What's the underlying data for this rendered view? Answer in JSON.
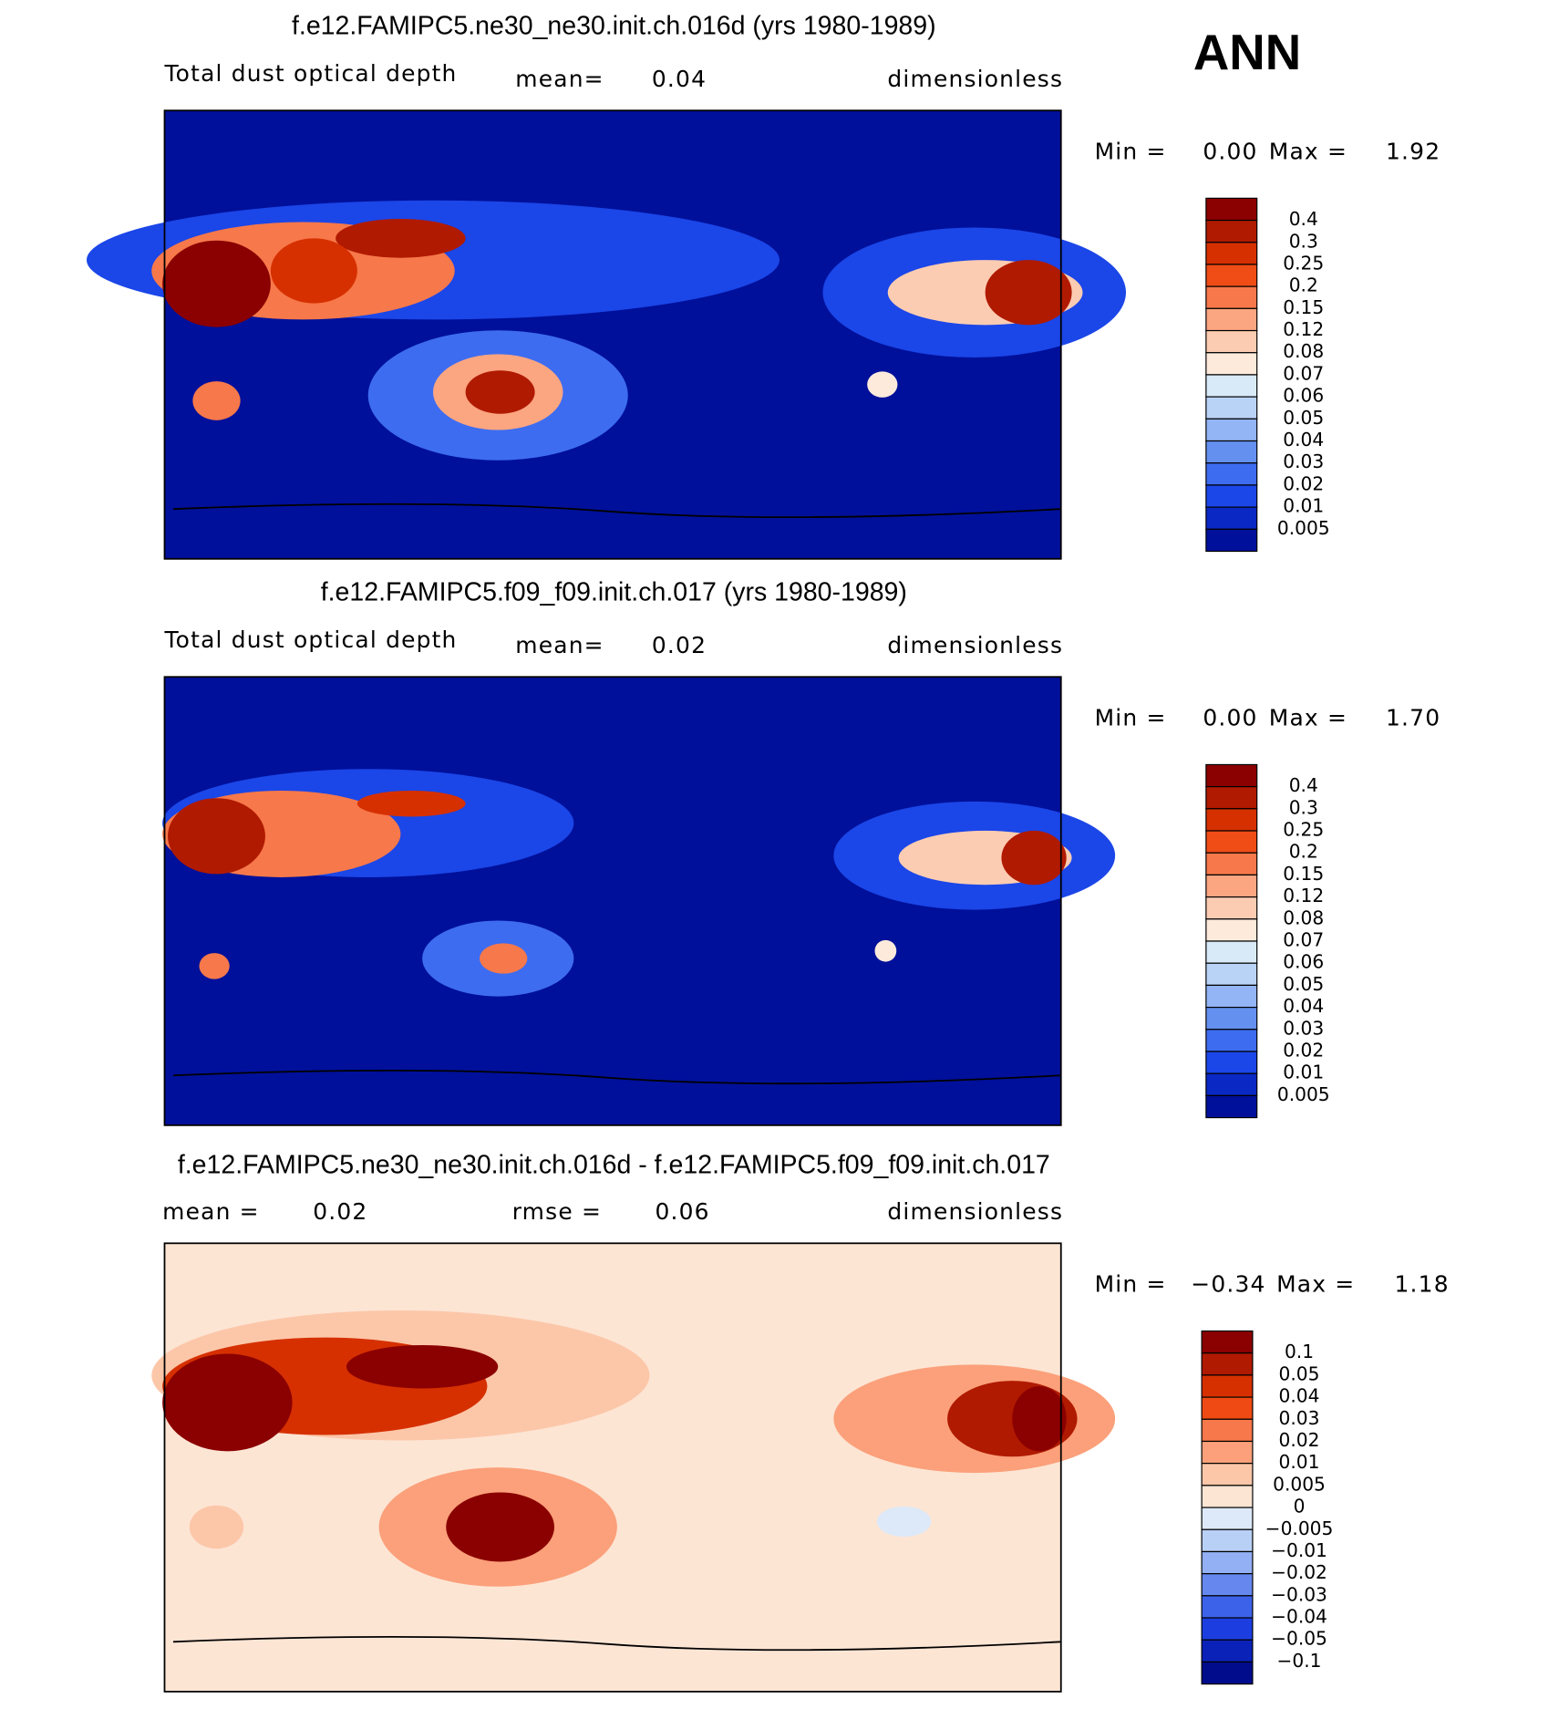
{
  "label": "ANN",
  "panels": [
    {
      "title": "f.e12.FAMIPC5.ne30_ne30.init.ch.016d (yrs 1980-1989)",
      "header": [
        "Total dust optical depth",
        "mean=",
        "0.04",
        "dimensionless"
      ],
      "range": [
        "Min =",
        "0.00",
        "Max =",
        "1.92"
      ],
      "levels": [
        "0.4",
        "0.3",
        "0.25",
        "0.2",
        "0.15",
        "0.12",
        "0.08",
        "0.07",
        "0.06",
        "0.05",
        "0.04",
        "0.03",
        "0.02",
        "0.01",
        "0.005"
      ],
      "colors": [
        "#8b0000",
        "#b01a00",
        "#d63000",
        "#f04c16",
        "#f7784a",
        "#fba581",
        "#fcccb2",
        "#fdeadb",
        "#d8e9f8",
        "#b9d3f6",
        "#93b5f5",
        "#6490f0",
        "#3d6cf0",
        "#1b46e8",
        "#0a28c4",
        "#00109a"
      ]
    },
    {
      "title": "f.e12.FAMIPC5.f09_f09.init.ch.017 (yrs 1980-1989)",
      "header": [
        "Total dust optical depth",
        "mean=",
        "0.02",
        "dimensionless"
      ],
      "range": [
        "Min =",
        "0.00",
        "Max =",
        "1.70"
      ],
      "levels": [
        "0.4",
        "0.3",
        "0.25",
        "0.2",
        "0.15",
        "0.12",
        "0.08",
        "0.07",
        "0.06",
        "0.05",
        "0.04",
        "0.03",
        "0.02",
        "0.01",
        "0.005"
      ],
      "colors": [
        "#8b0000",
        "#b01a00",
        "#d63000",
        "#f04c16",
        "#f7784a",
        "#fba581",
        "#fcccb2",
        "#fdeadb",
        "#d8e9f8",
        "#b9d3f6",
        "#93b5f5",
        "#6490f0",
        "#3d6cf0",
        "#1b46e8",
        "#0a28c4",
        "#00109a"
      ]
    },
    {
      "title": "f.e12.FAMIPC5.ne30_ne30.init.ch.016d - f.e12.FAMIPC5.f09_f09.init.ch.017",
      "header": [
        "mean =",
        "0.02",
        "rmse =",
        "0.06",
        "dimensionless"
      ],
      "range": [
        "Min =",
        "−0.34",
        "Max =",
        "1.18"
      ],
      "levels": [
        "0.1",
        "0.05",
        "0.04",
        "0.03",
        "0.02",
        "0.01",
        "0.005",
        "0",
        "−0.005",
        "−0.01",
        "−0.02",
        "−0.03",
        "−0.04",
        "−0.05",
        "−0.1"
      ],
      "colors": [
        "#8b0000",
        "#b01a00",
        "#d63000",
        "#ef4a14",
        "#f7784a",
        "#fba07a",
        "#fcc7a9",
        "#fde5d4",
        "#dde9f8",
        "#b9d0f6",
        "#93b0f4",
        "#6688ee",
        "#3d62ea",
        "#1c3ee0",
        "#0a22b8",
        "#000c8c"
      ]
    }
  ]
}
